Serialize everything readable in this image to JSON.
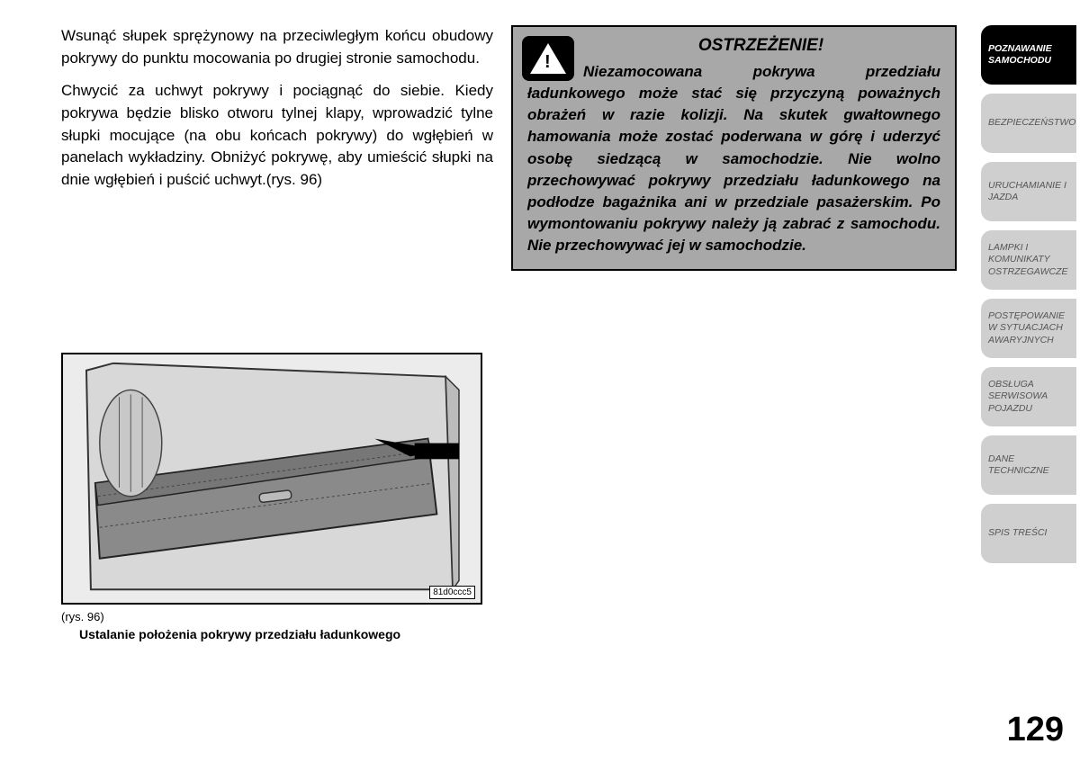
{
  "leftColumn": {
    "para1": "Wsunąć słupek sprężynowy na przeciwległym końcu obudowy pokrywy do punktu mocowania po drugiej stronie samochodu.",
    "para2": "Chwycić za uchwyt pokrywy i pociągnąć do siebie. Kiedy pokrywa będzie blisko otworu tylnej klapy, wprowadzić tylne słupki mocujące (na obu końcach pokrywy) do wgłębień w panelach wykładziny. Obniżyć pokrywę, aby umieścić słupki na dnie wgłębień i puścić uchwyt.(rys.  96)"
  },
  "figure": {
    "code": "81d0ccc5",
    "captionNum": "(rys. 96)",
    "captionBold": "Ustalanie położenia pokrywy przedziału ładunkowego"
  },
  "warning": {
    "title": "OSTRZEŻENIE!",
    "text": "Niezamocowana pokrywa przedziału ładunkowego może stać się przyczyną poważnych obrażeń w razie kolizji. Na skutek gwałtownego hamowania może zostać poderwana w górę i uderzyć osobę siedzącą w samochodzie. Nie wolno przechowywać pokrywy przedziału ładunkowego na podłodze bagażnika ani w przedziale pasażerskim. Po wymontowaniu pokrywy należy ją zabrać z samochodu. Nie przechowywać jej w samochodzie."
  },
  "sidebar": {
    "tabs": [
      {
        "label": "POZNAWANIE SAMOCHODU",
        "active": true
      },
      {
        "label": "BEZPIECZEŃSTWO",
        "active": false
      },
      {
        "label": "URUCHAMIANIE I JAZDA",
        "active": false
      },
      {
        "label": "LAMPKI I KOMUNIKATY OSTRZEGAWCZE",
        "active": false
      },
      {
        "label": "POSTĘPOWANIE W SYTUACJACH AWARYJNYCH",
        "active": false
      },
      {
        "label": "OBSŁUGA SERWISOWA POJAZDU",
        "active": false
      },
      {
        "label": "DANE TECHNICZNE",
        "active": false
      },
      {
        "label": "SPIS TREŚCI",
        "active": false
      }
    ]
  },
  "pageNumber": "129"
}
